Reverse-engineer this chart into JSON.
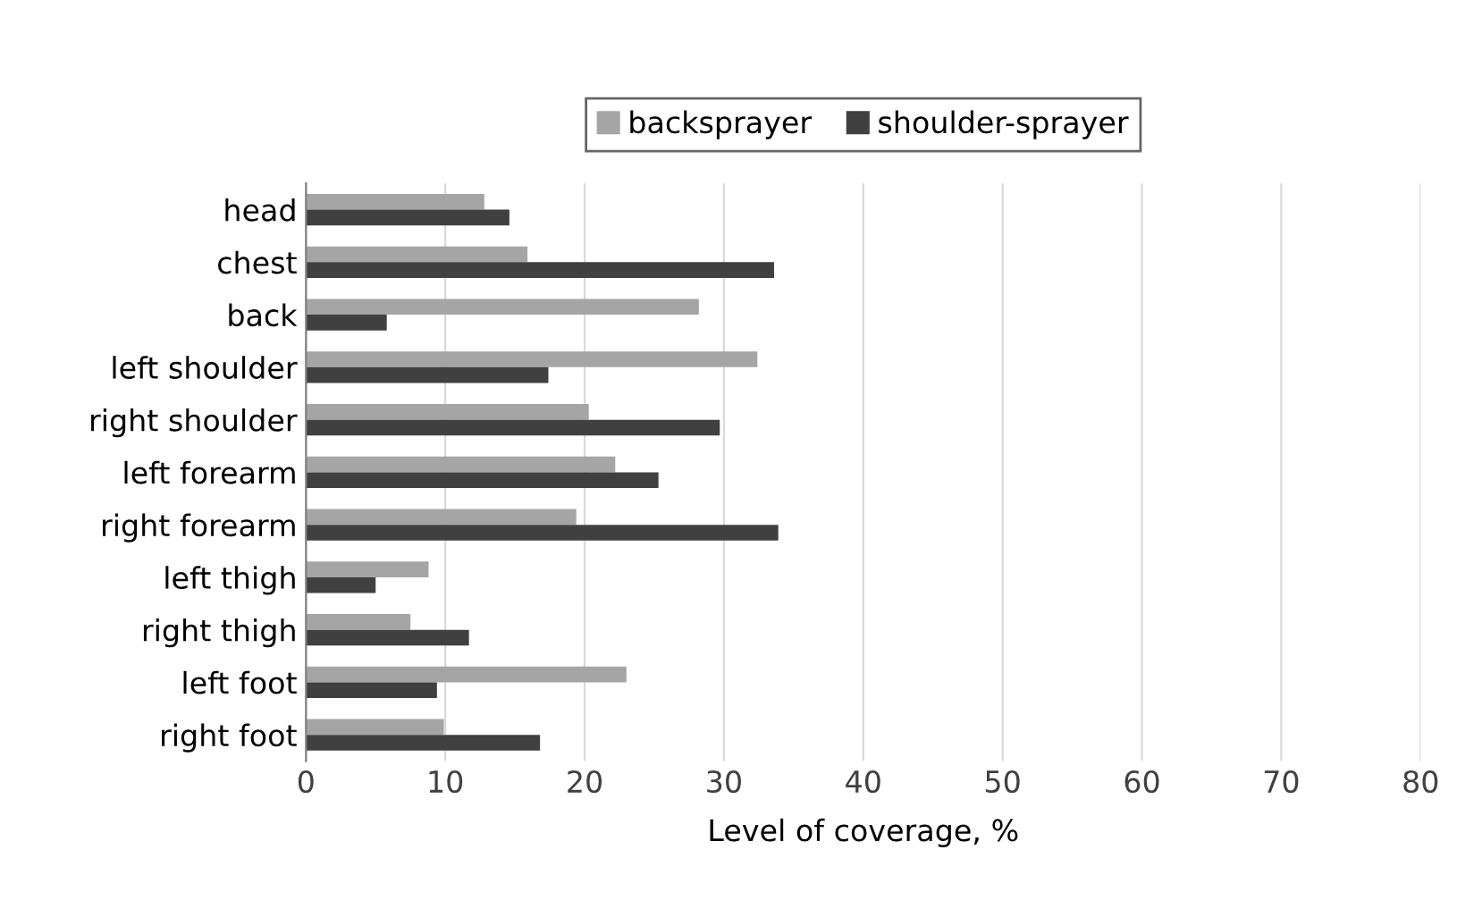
{
  "chart_data": {
    "type": "bar",
    "orientation": "horizontal",
    "xlabel": "Level of coverage, %",
    "categories": [
      "head",
      "chest",
      "back",
      "left shoulder",
      "right shoulder",
      "left forearm",
      "right forearm",
      "left thigh",
      "right thigh",
      "left foot",
      "right foot"
    ],
    "series": [
      {
        "name": "backsprayer",
        "color": "#a5a5a5",
        "values": [
          12.8,
          15.9,
          28.2,
          32.4,
          20.3,
          22.2,
          19.4,
          8.8,
          7.5,
          23.0,
          9.9
        ]
      },
      {
        "name": "shoulder-sprayer",
        "color": "#404040",
        "values": [
          14.6,
          33.6,
          5.8,
          17.4,
          29.7,
          25.3,
          33.9,
          5.0,
          11.7,
          9.4,
          16.8
        ]
      }
    ],
    "xlim": [
      0,
      80
    ],
    "xticks": [
      0,
      10,
      20,
      30,
      40,
      50,
      60,
      70,
      80
    ],
    "grid": "x",
    "legend": "top"
  }
}
